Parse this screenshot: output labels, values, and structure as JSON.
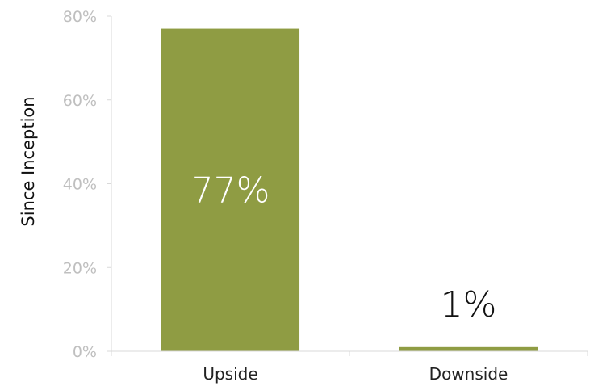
{
  "chart_data": {
    "type": "bar",
    "categories": [
      "Upside",
      "Downside"
    ],
    "values": [
      77,
      1
    ],
    "data_labels": [
      "77%",
      "1%"
    ],
    "ylabel": "Since Inception",
    "ylim": [
      0,
      80
    ],
    "yticks": [
      "0%",
      "20%",
      "40%",
      "60%",
      "80%"
    ],
    "ytick_values": [
      0,
      20,
      40,
      60,
      80
    ],
    "grid": false,
    "legend": "none",
    "colors": {
      "bar": "#8f9c43",
      "axis": "#d9d9d9",
      "tick_text": "#bfbfbf",
      "label_inside": "#ffffff",
      "label_outside": "#111111"
    }
  }
}
